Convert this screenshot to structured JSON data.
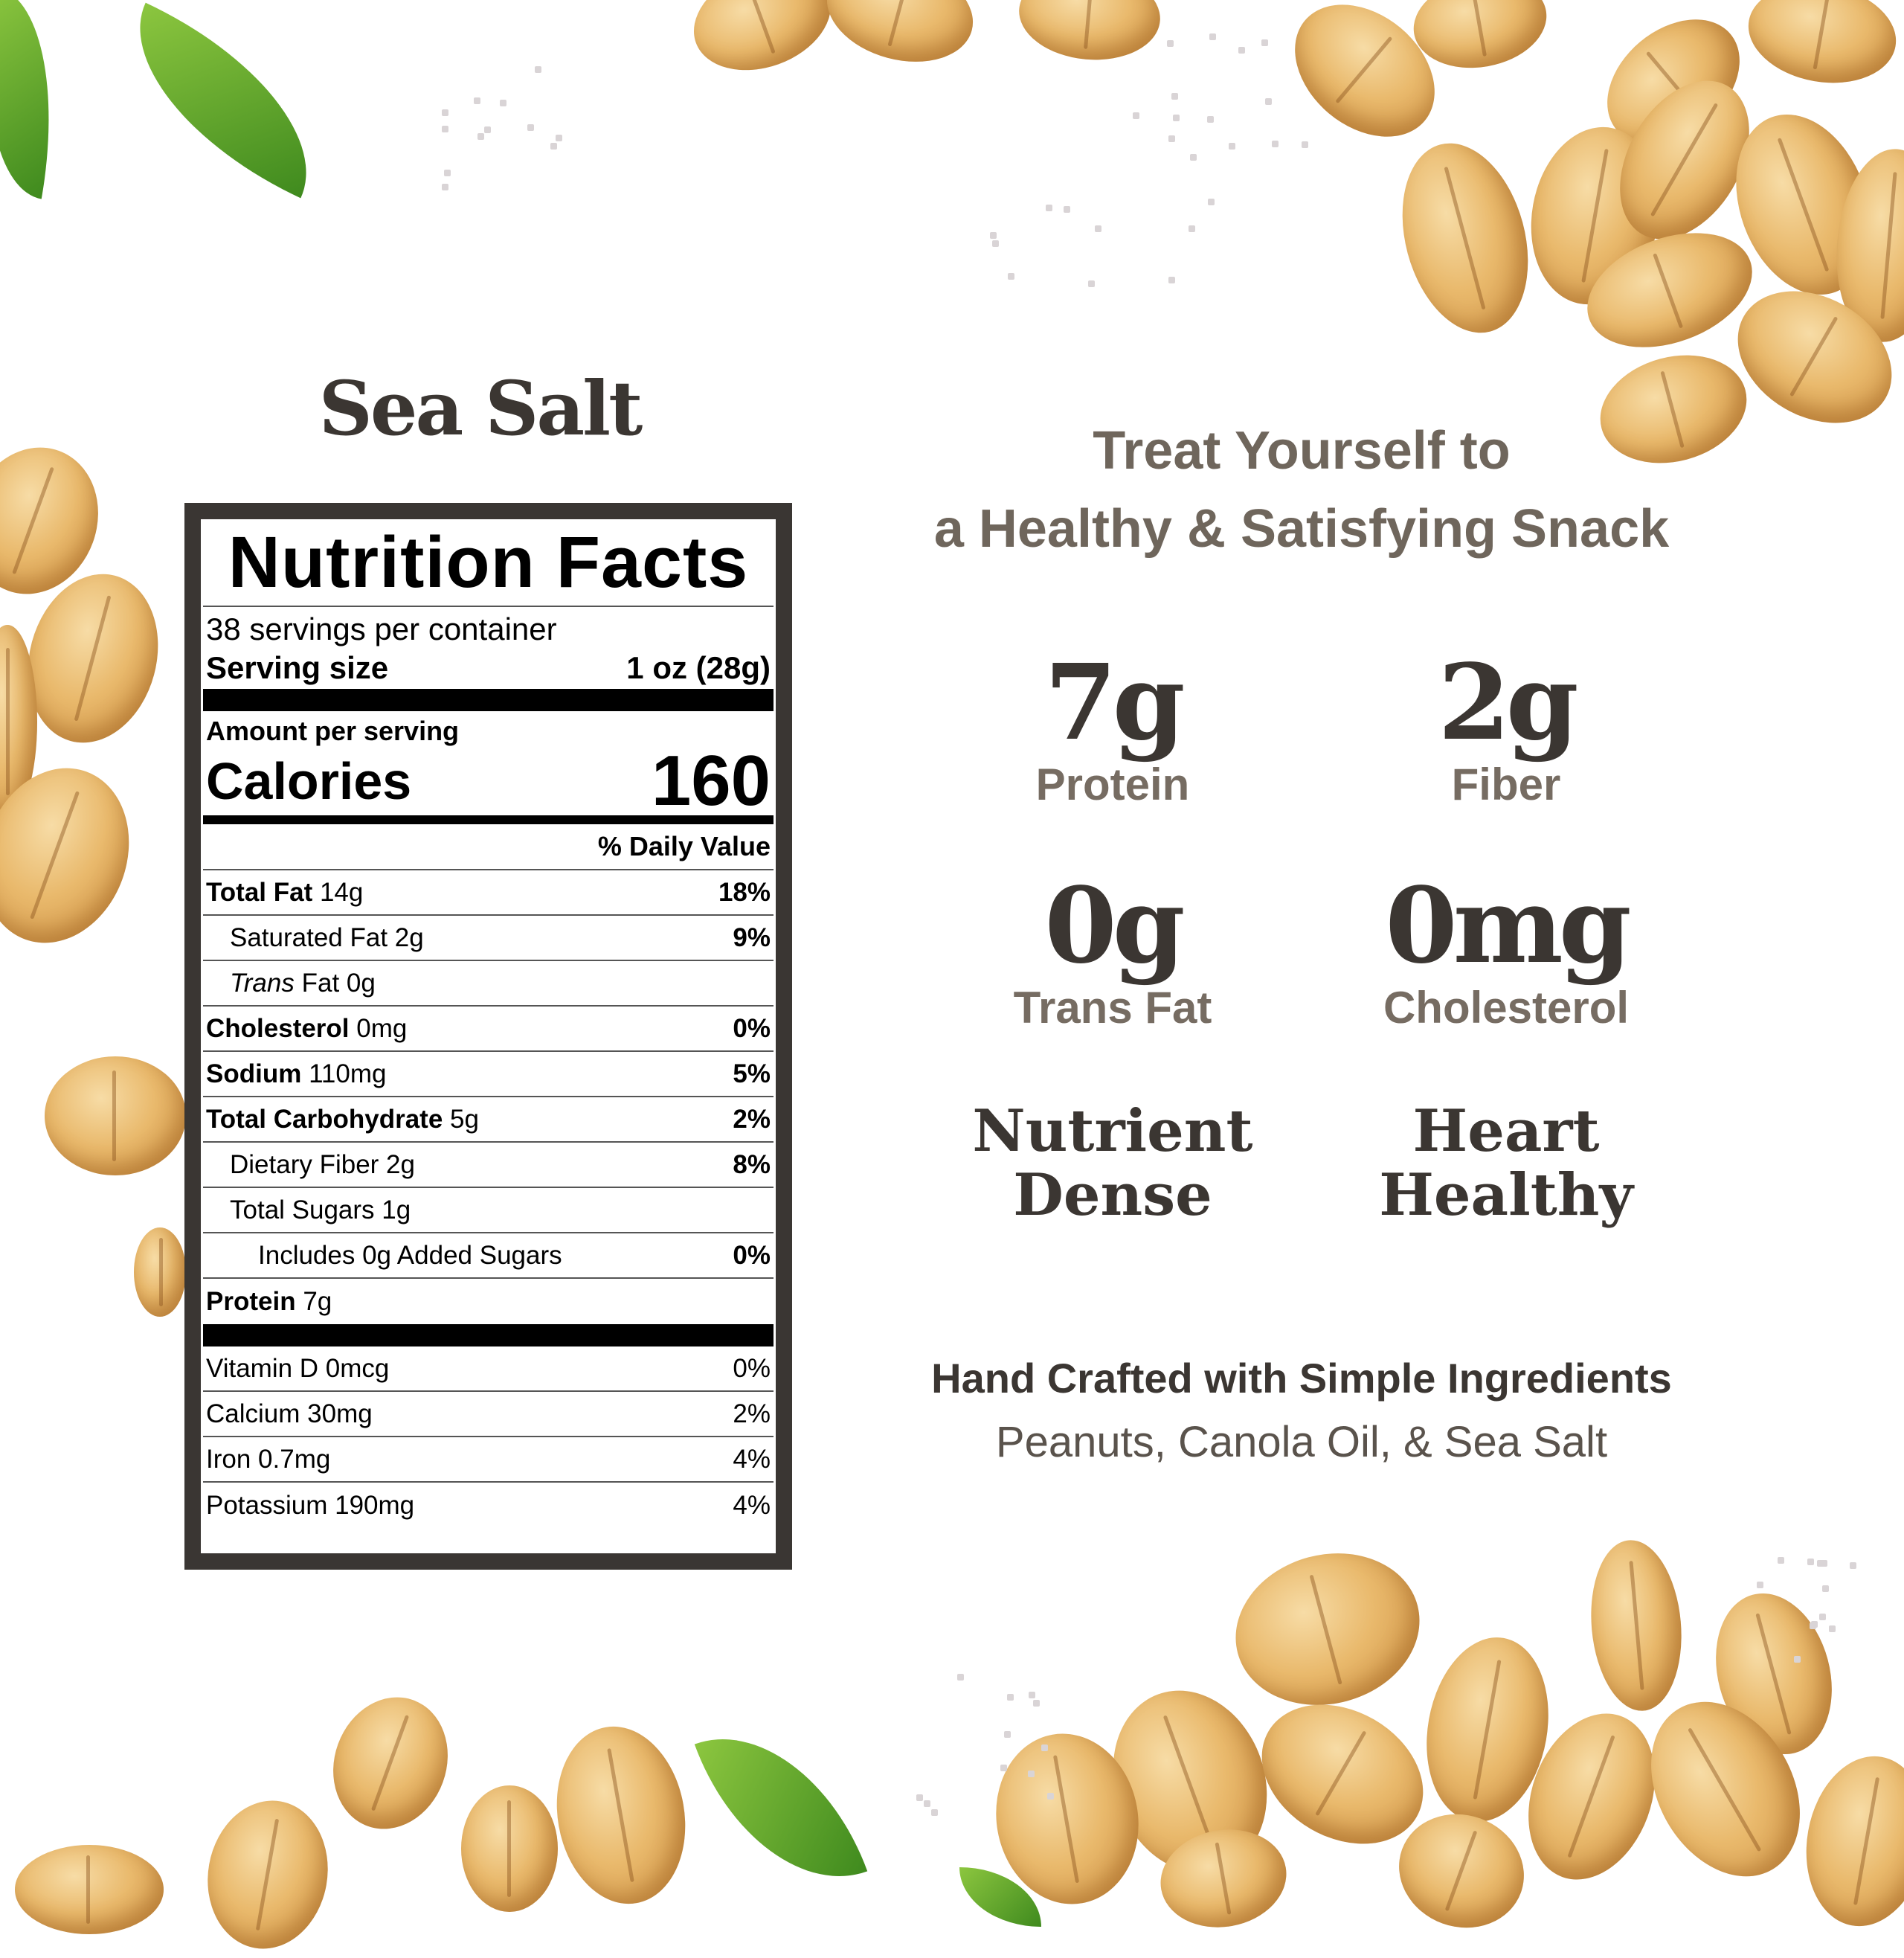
{
  "flavor_title": "Sea Salt",
  "nutrition": {
    "title": "Nutrition Facts",
    "servings_per_container": "38 servings per container",
    "serving_size_label": "Serving size",
    "serving_size_value": "1 oz (28g)",
    "amount_per_serving": "Amount per serving",
    "calories_label": "Calories",
    "calories_value": "160",
    "daily_value_header": "% Daily Value",
    "rows": [
      {
        "name": "Total Fat",
        "amount": "14g",
        "dv": "18%"
      },
      {
        "name": "Saturated Fat 2g",
        "dv": "9%"
      },
      {
        "name_italic": "Trans",
        "name": "Fat 0g"
      },
      {
        "name": "Cholesterol",
        "amount": "0mg",
        "dv": "0%"
      },
      {
        "name": "Sodium",
        "amount": "110mg",
        "dv": "5%"
      },
      {
        "name": "Total Carbohydrate",
        "amount": "5g",
        "dv": "2%"
      },
      {
        "name": "Dietary Fiber 2g",
        "dv": "8%"
      },
      {
        "name": "Total Sugars 1g"
      },
      {
        "name": "Includes 0g Added Sugars",
        "dv": "0%"
      },
      {
        "name": "Protein",
        "amount": "7g"
      }
    ],
    "vitamins": [
      {
        "name": "Vitamin D 0mcg",
        "dv": "0%"
      },
      {
        "name": "Calcium 30mg",
        "dv": "2%"
      },
      {
        "name": "Iron 0.7mg",
        "dv": "4%"
      },
      {
        "name": "Potassium 190mg",
        "dv": "4%"
      }
    ]
  },
  "headline": {
    "line1": "Treat Yourself to",
    "line2": "a Healthy & Satisfying Snack"
  },
  "stats": [
    {
      "value": "7g",
      "label": "Protein"
    },
    {
      "value": "2g",
      "label": "Fiber"
    },
    {
      "value": "0g",
      "label": "Trans Fat"
    },
    {
      "value": "0mg",
      "label": "Cholesterol"
    }
  ],
  "claims": [
    {
      "line1": "Nutrient",
      "line2": "Dense"
    },
    {
      "line1": "Heart",
      "line2": "Healthy"
    }
  ],
  "ingredients": {
    "heading": "Hand Crafted with Simple Ingredients",
    "list": "Peanuts, Canola Oil, & Sea Salt"
  },
  "colors": {
    "text_dark": "#3b3632",
    "text_muted": "#6f665c",
    "label_border": "#3a3633",
    "peanut": "#e9b96c",
    "leaf": "#5aa52a"
  }
}
